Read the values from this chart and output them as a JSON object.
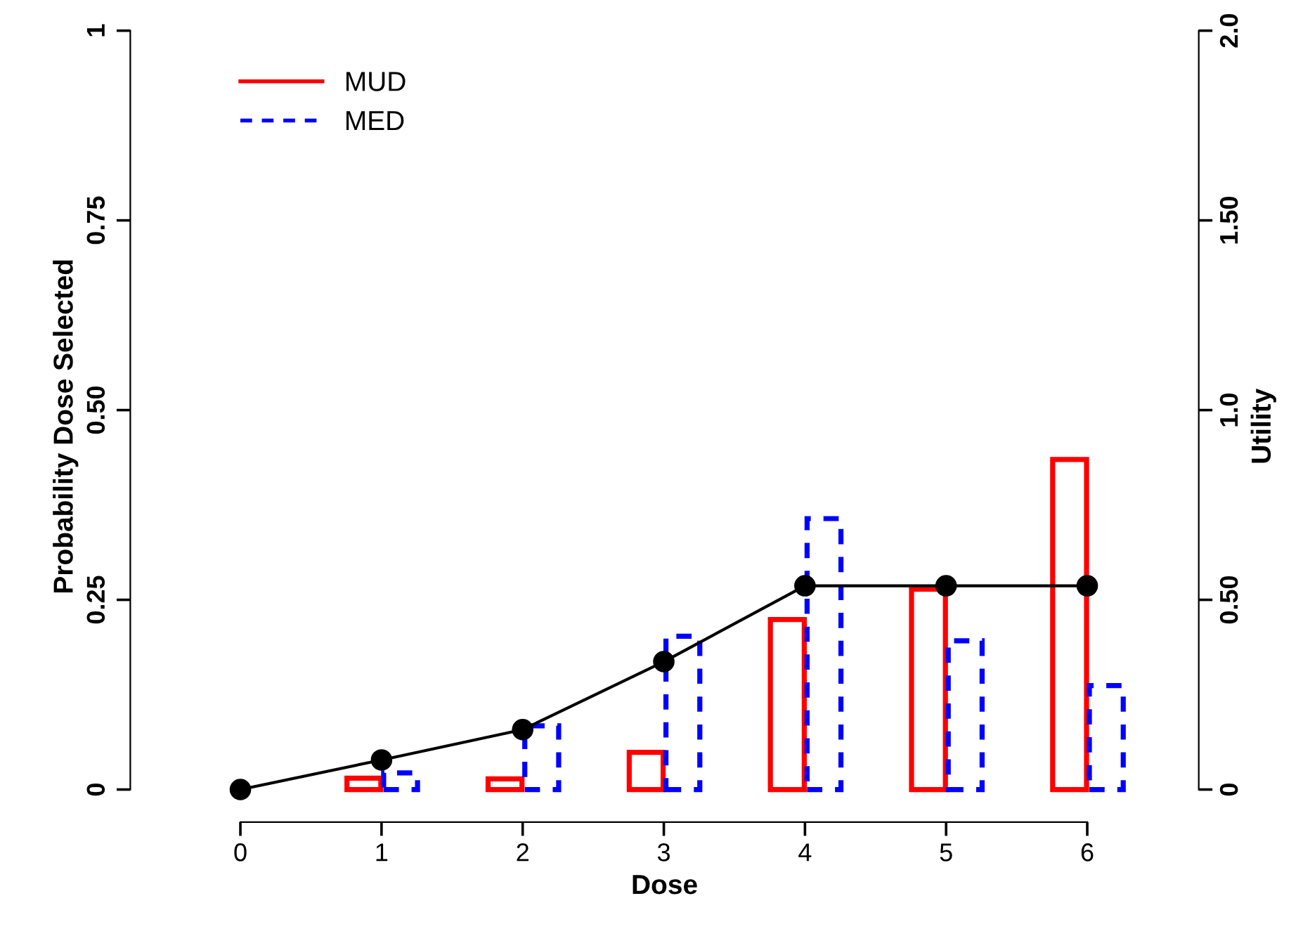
{
  "chart_data": {
    "type": "bar",
    "xlabel": "Dose",
    "ylabel": "Probability Dose Selected",
    "y2label": "Utility",
    "xlim": [
      -0.78,
      6.79
    ],
    "xticks": [
      0,
      1,
      2,
      3,
      4,
      5,
      6
    ],
    "ylim": [
      -0.043,
      1
    ],
    "yticks": [
      0,
      {
        "value": 0.25,
        "label": "0.25"
      },
      {
        "value": 0.5,
        "label": "0.50"
      },
      {
        "value": 0.75,
        "label": "0.75"
      },
      1
    ],
    "y2lim": [
      -0.086,
      2
    ],
    "y2ticks": [
      0,
      {
        "value": 0.5,
        "label": "0.50"
      },
      {
        "value": 1,
        "label": "1.0"
      },
      {
        "value": 1.5,
        "label": "1.50"
      },
      {
        "value": 2,
        "label": "2.0"
      }
    ],
    "legend": "top left",
    "grid": false,
    "series": [
      {
        "name": "MUD",
        "color": "#ff0000",
        "line_style": "solid",
        "x": [
          1,
          2,
          3,
          4,
          5,
          6
        ],
        "values": [
          0.015,
          0.014,
          0.049,
          0.224,
          0.264,
          0.435
        ]
      },
      {
        "name": "MED",
        "color": "#0000ff",
        "line_style": "dashed",
        "x": [
          1,
          2,
          3,
          4,
          5,
          6
        ],
        "values": [
          0.022,
          0.084,
          0.202,
          0.357,
          0.196,
          0.137
        ]
      },
      {
        "type": "line",
        "axis": "y2",
        "color": "#000000",
        "marker": "circle",
        "line_style": "solid",
        "x": [
          0,
          1,
          2,
          3,
          4,
          5,
          6
        ],
        "values": [
          0,
          0.078,
          0.158,
          0.337,
          0.537,
          0.537,
          0.537
        ]
      }
    ]
  }
}
